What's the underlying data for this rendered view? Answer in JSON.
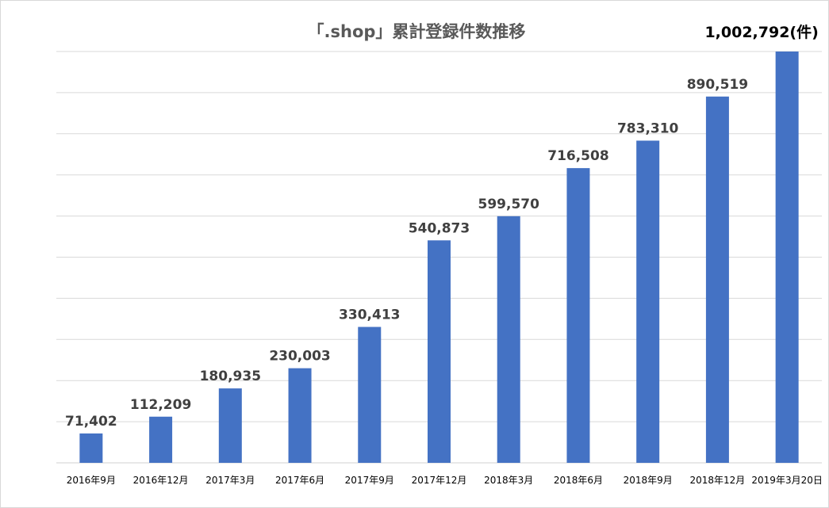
{
  "chart_data": {
    "type": "bar",
    "title": "「.shop」累計登録件数推移",
    "categories": [
      "2016年9月",
      "2016年12月",
      "2017年3月",
      "2017年6月",
      "2017年9月",
      "2017年12月",
      "2018年3月",
      "2018年6月",
      "2018年9月",
      "2018年12月",
      "2019年3月20日"
    ],
    "values": [
      71402,
      112209,
      180935,
      230003,
      330413,
      540873,
      599570,
      716508,
      783310,
      890519,
      1002792
    ],
    "data_labels": [
      "71,402",
      "112,209",
      "180,935",
      "230,003",
      "330,413",
      "540,873",
      "599,570",
      "716,508",
      "783,310",
      "890,519",
      "1,002,792(件)"
    ],
    "xlabel": "",
    "ylabel": "",
    "ylim": [
      0,
      1000000
    ],
    "y_tick_step": 100000,
    "y_tick_labels_shown": false,
    "grid": true,
    "legend": "none",
    "bar_color": "#4472c4",
    "grid_color": "#d9d9d9",
    "title_color": "#595959"
  }
}
